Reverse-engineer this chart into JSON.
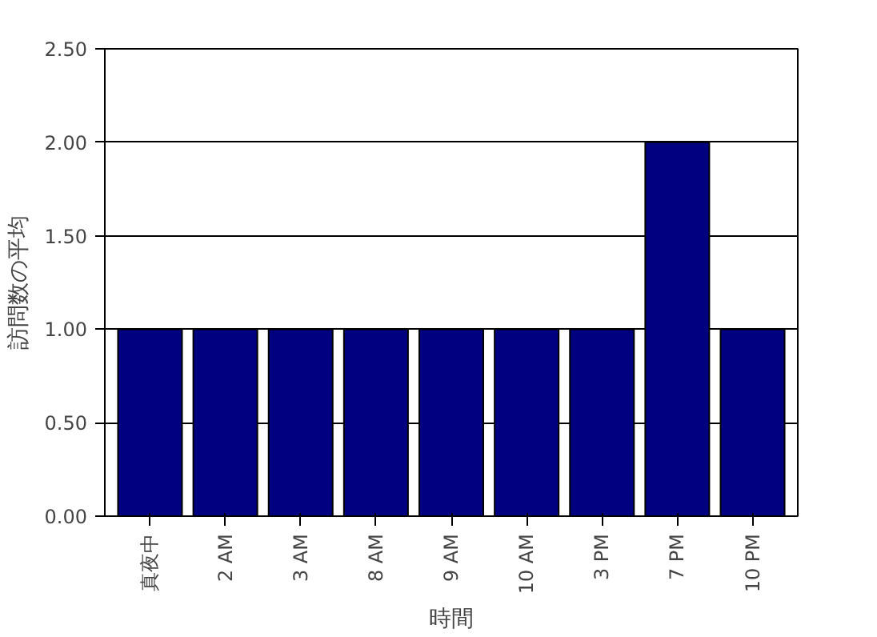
{
  "chart_data": {
    "type": "bar",
    "xlabel": "時間",
    "ylabel": "訪問数の平均",
    "categories": [
      "真夜中",
      "2 AM",
      "3 AM",
      "8 AM",
      "9 AM",
      "10 AM",
      "3 PM",
      "7 PM",
      "10 PM"
    ],
    "values": [
      1.0,
      1.0,
      1.0,
      1.0,
      1.0,
      1.0,
      1.0,
      2.0,
      1.0
    ],
    "color": "#000080",
    "ylim": [
      0,
      2.5
    ],
    "yticks": [
      {
        "value": 0,
        "label": "0.00"
      },
      {
        "value": 0.5,
        "label": "0.50"
      },
      {
        "value": 1,
        "label": "1.00"
      },
      {
        "value": 1.5,
        "label": "1.50"
      },
      {
        "value": 2,
        "label": "2.00"
      },
      {
        "value": 2.5,
        "label": "2.50"
      }
    ],
    "grid": "y"
  }
}
